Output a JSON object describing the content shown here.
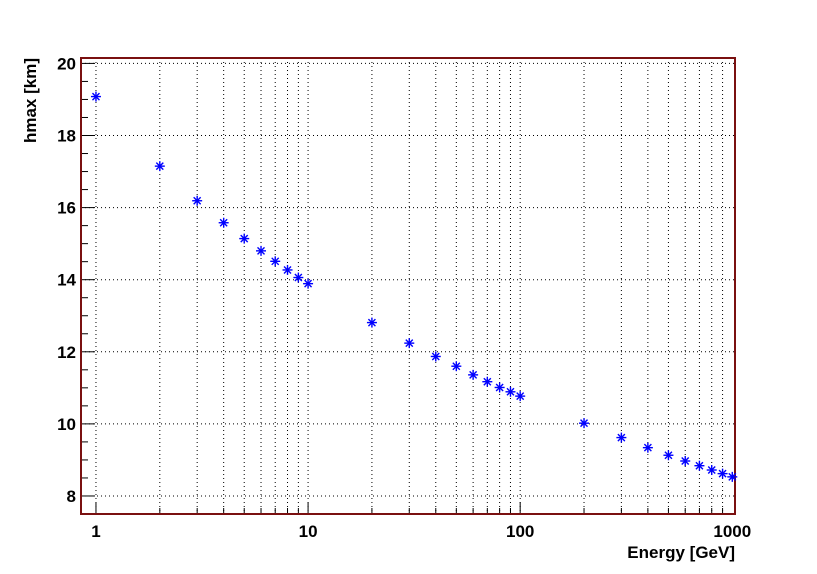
{
  "chart_data": {
    "type": "scatter",
    "title": "",
    "xlabel": "Energy [GeV]",
    "ylabel": "hmax [km]",
    "x_scale": "log",
    "xlim": [
      0.85,
      1030
    ],
    "ylim": [
      7.5,
      20.15
    ],
    "grid": true,
    "x_ticks": [
      1,
      10,
      100,
      1000
    ],
    "x_tick_labels": [
      "1",
      "10",
      "100",
      "1000"
    ],
    "y_ticks": [
      8,
      10,
      12,
      14,
      16,
      18,
      20
    ],
    "y_tick_labels": [
      "8",
      "10",
      "12",
      "14",
      "16",
      "18",
      "20"
    ],
    "marker": "asterisk",
    "marker_color": "#0000ff",
    "frame_color": "#7a1010",
    "x": [
      1,
      2,
      3,
      4,
      5,
      6,
      7,
      8,
      9,
      10,
      20,
      30,
      40,
      50,
      60,
      70,
      80,
      90,
      100,
      200,
      300,
      400,
      500,
      600,
      700,
      800,
      900,
      1000
    ],
    "y": [
      19.08,
      17.15,
      16.19,
      15.58,
      15.14,
      14.8,
      14.51,
      14.27,
      14.06,
      13.89,
      12.81,
      12.24,
      11.87,
      11.6,
      11.36,
      11.17,
      11.01,
      10.89,
      10.77,
      10.02,
      9.62,
      9.34,
      9.13,
      8.97,
      8.84,
      8.72,
      8.62,
      8.53
    ]
  }
}
